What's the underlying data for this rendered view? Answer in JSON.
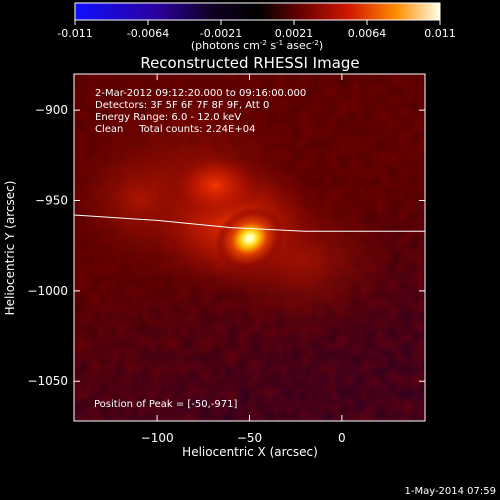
{
  "colorbar": {
    "ticks": [
      "-0.011",
      "-0.0064",
      "-0.0021",
      "0.0021",
      "0.0064",
      "0.011"
    ],
    "units_main": "(photons cm",
    "units_sup1": "-2",
    "units_mid": " s",
    "units_sup2": "-1",
    "units_end": " asec",
    "units_sup3": "-2",
    "units_close": ")"
  },
  "image_info": [
    "2-Mar-2012 09:12:20.000 to 09:16:00.000",
    "Detectors: 3F 5F 6F 7F 8F 9F, Att 0",
    "Energy Range: 6.0 - 12.0 keV",
    "Clean     Total counts: 2.24E+04"
  ],
  "peak_label": "Position of Peak = [-50,-971]",
  "footer_date": "1-May-2014 07:59",
  "chart_data": {
    "type": "heatmap",
    "title": "Reconstructed RHESSI Image",
    "xlabel": "Heliocentric X (arcsec)",
    "ylabel": "Heliocentric Y (arcsec)",
    "xlim": [
      -145,
      45
    ],
    "ylim": [
      -1072,
      -880
    ],
    "xticks": [
      -100,
      -50,
      0
    ],
    "xtick_labels": [
      "−100",
      "−50",
      "0"
    ],
    "yticks": [
      -900,
      -950,
      -1000,
      -1050
    ],
    "ytick_labels": [
      "−900",
      "−950",
      "−1000",
      "−1050"
    ],
    "colorbar_range": [
      -0.011,
      0.011
    ],
    "colormap": [
      "#0000ff",
      "#200060",
      "#000000",
      "#5a0000",
      "#c81000",
      "#ff6000",
      "#ffd000",
      "#ffffff"
    ],
    "peak": {
      "x": -50,
      "y": -971
    },
    "limb": [
      [
        -145,
        -958
      ],
      [
        -100,
        -961
      ],
      [
        -60,
        -965
      ],
      [
        -20,
        -967
      ],
      [
        45,
        -967
      ]
    ]
  }
}
